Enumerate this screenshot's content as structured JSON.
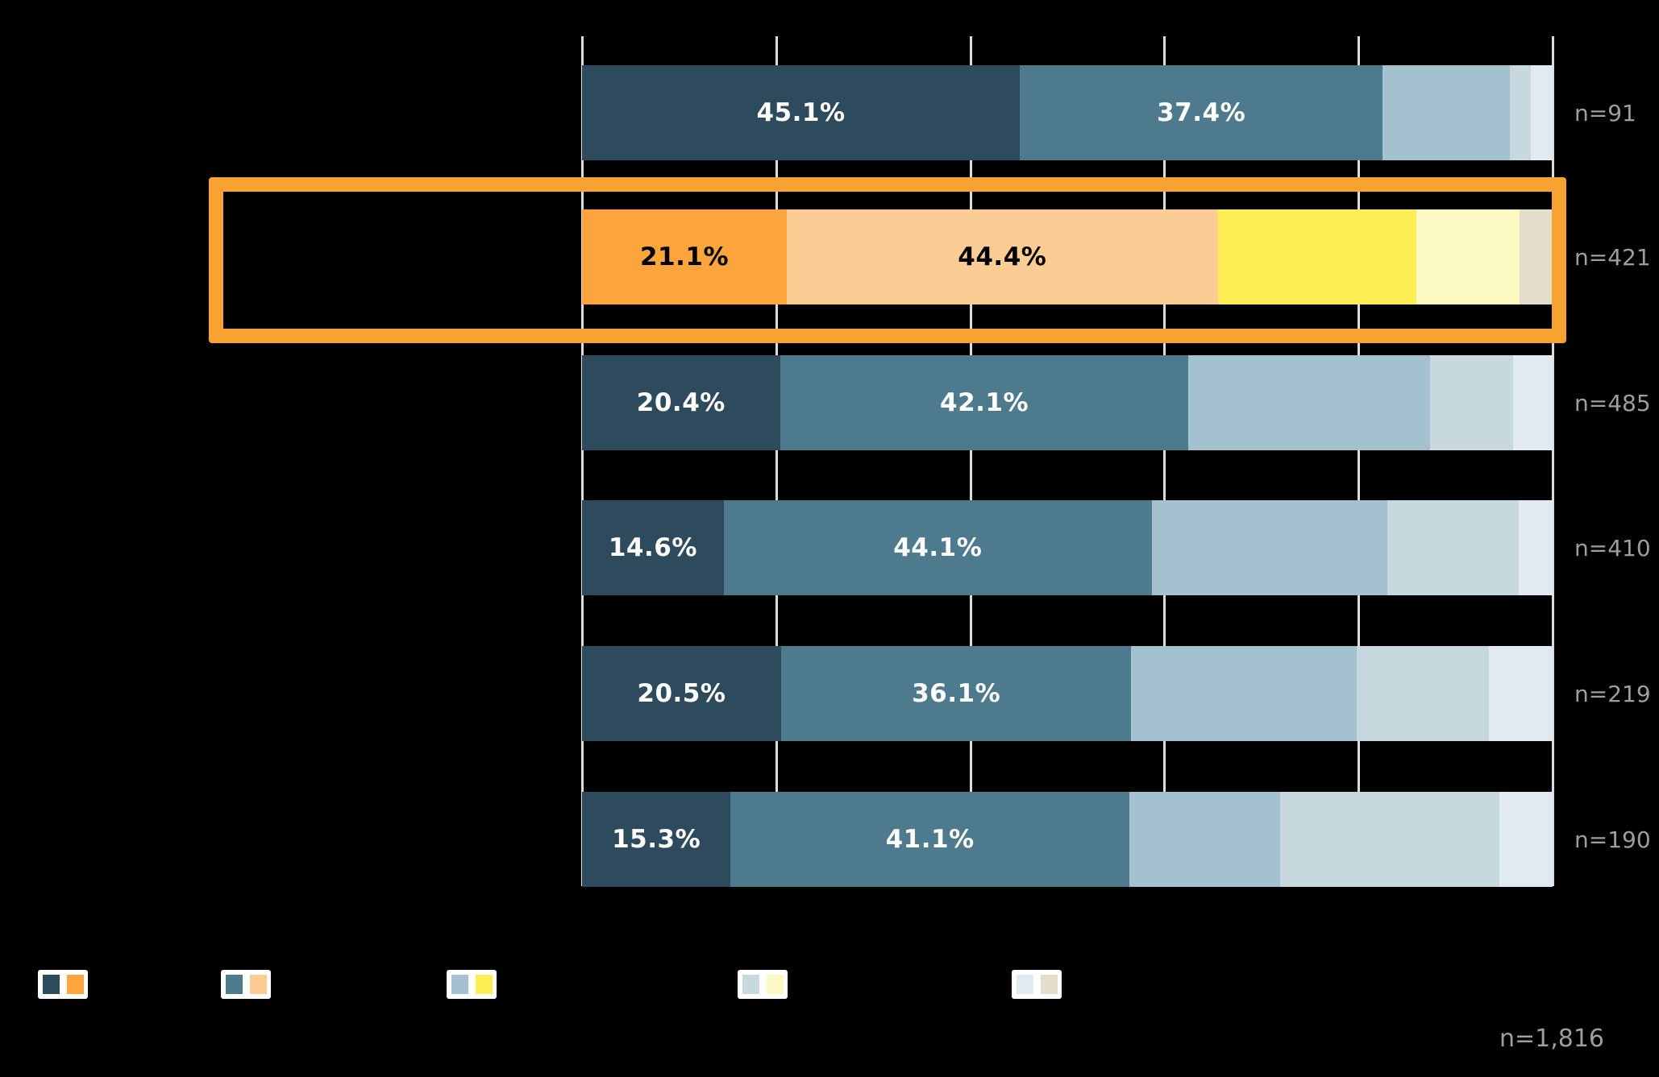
{
  "chart_data": {
    "type": "bar",
    "orientation": "horizontal",
    "stacked": true,
    "title": "",
    "xlabel": "",
    "ylabel": "",
    "x_axis": {
      "min": 0,
      "max": 100,
      "unit": "%",
      "gridline_step": 20,
      "tick_labels_visible": false
    },
    "category_labels_visible": false,
    "legend_labels_visible": false,
    "series_count": 5,
    "rows": [
      {
        "n_label": "n=91",
        "n": 91,
        "palette": "blue",
        "highlighted": false,
        "segments": [
          45.1,
          37.4,
          13.1,
          2.2,
          2.2
        ],
        "value_labels": [
          "45.1%",
          "37.4%"
        ]
      },
      {
        "n_label": "n=421",
        "n": 421,
        "palette": "orange",
        "highlighted": true,
        "segments": [
          21.1,
          44.4,
          20.5,
          10.6,
          3.4
        ],
        "value_labels": [
          "21.1%",
          "44.4%"
        ]
      },
      {
        "n_label": "n=485",
        "n": 485,
        "palette": "blue",
        "highlighted": false,
        "segments": [
          20.4,
          42.1,
          24.9,
          8.5,
          4.1
        ],
        "value_labels": [
          "20.4%",
          "42.1%"
        ]
      },
      {
        "n_label": "n=410",
        "n": 410,
        "palette": "blue",
        "highlighted": false,
        "segments": [
          14.6,
          44.1,
          24.3,
          13.5,
          3.5
        ],
        "value_labels": [
          "14.6%",
          "44.1%"
        ]
      },
      {
        "n_label": "n=219",
        "n": 219,
        "palette": "blue",
        "highlighted": false,
        "segments": [
          20.5,
          36.1,
          23.2,
          13.6,
          6.6
        ],
        "value_labels": [
          "20.5%",
          "36.1%"
        ]
      },
      {
        "n_label": "n=190",
        "n": 190,
        "palette": "blue",
        "highlighted": false,
        "segments": [
          15.3,
          41.1,
          15.5,
          22.6,
          5.5
        ],
        "value_labels": [
          "15.3%",
          "41.1%"
        ]
      }
    ],
    "total_label": "n=1,816"
  },
  "palettes": {
    "blue": [
      "#2E4B5E",
      "#4E7A8D",
      "#A4C1CF",
      "#C7D9DF",
      "#E2EAF1"
    ],
    "orange": [
      "#FBA53C",
      "#FBCD94",
      "#FFED55",
      "#FCF8C2",
      "#E3DECB"
    ]
  },
  "legend": {
    "items": [
      {
        "swatch_colors": [
          "#2E4B5E",
          "#FBA53C"
        ]
      },
      {
        "swatch_colors": [
          "#4E7A8D",
          "#FBCD94"
        ]
      },
      {
        "swatch_colors": [
          "#A4C1CF",
          "#FFED55"
        ]
      },
      {
        "swatch_colors": [
          "#C7D9DF",
          "#FCF8C2"
        ]
      },
      {
        "swatch_colors": [
          "#E2EAF1",
          "#E3DECB"
        ]
      }
    ]
  },
  "highlight": {
    "row_index": 1,
    "border_color": "#F8A331"
  },
  "colors": {
    "background": "#000000",
    "gridline": "#DCDCDC",
    "n_label": "#9E9E9E",
    "value_label_on_blue": "#FFFFFF",
    "value_label_on_orange": "#000000"
  },
  "footer": {
    "total_label": "n=1,816"
  }
}
